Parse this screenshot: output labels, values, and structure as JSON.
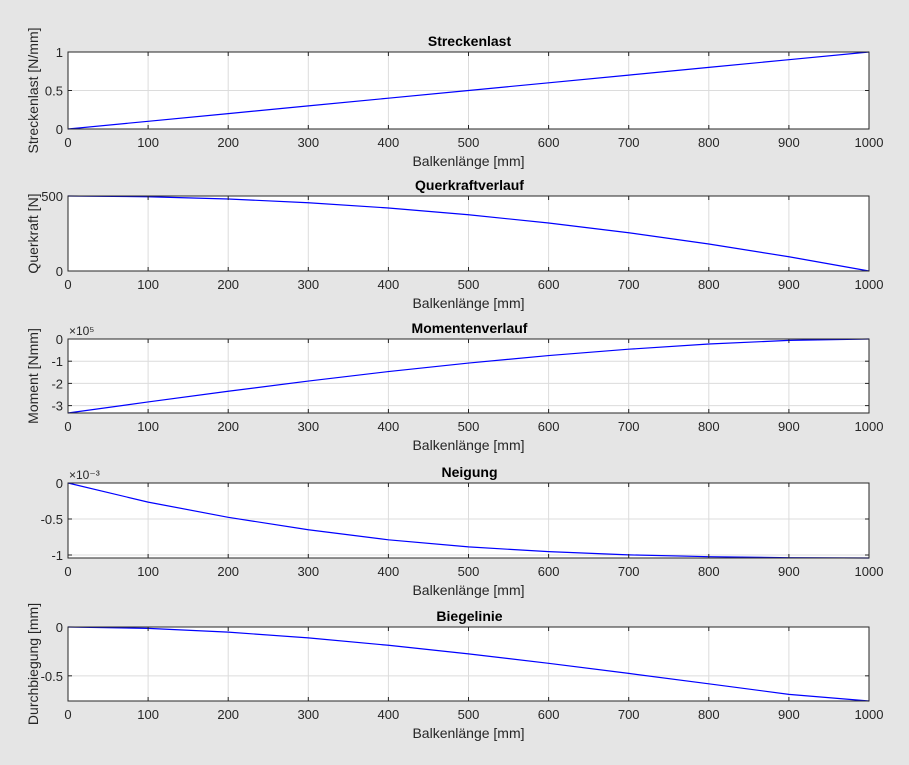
{
  "figure": {
    "background": "#e5e5e5",
    "line_color": "#0000ff"
  },
  "chart_data": [
    {
      "type": "line",
      "title": "Streckenlast",
      "xlabel": "Balkenlänge [mm]",
      "ylabel": "Streckenlast [N/mm]",
      "xlim": [
        0,
        1000
      ],
      "ylim": [
        0,
        1
      ],
      "xticks": [
        0,
        100,
        200,
        300,
        400,
        500,
        600,
        700,
        800,
        900,
        1000
      ],
      "xtick_labels": [
        "0",
        "100",
        "200",
        "300",
        "400",
        "500",
        "600",
        "700",
        "800",
        "900",
        "1000"
      ],
      "yticks": [
        0,
        0.5,
        1
      ],
      "ytick_labels": [
        "0",
        "0.5",
        "1"
      ],
      "exponent_label": "",
      "grid": true,
      "x": [
        0,
        100,
        200,
        300,
        400,
        500,
        600,
        700,
        800,
        900,
        1000
      ],
      "y": [
        0,
        0.1,
        0.2,
        0.3,
        0.4,
        0.5,
        0.6,
        0.7,
        0.8,
        0.9,
        1
      ]
    },
    {
      "type": "line",
      "title": "Querkraftverlauf",
      "xlabel": "Balkenlänge [mm]",
      "ylabel": "Querkraft [N]",
      "xlim": [
        0,
        1000
      ],
      "ylim": [
        0,
        500
      ],
      "xticks": [
        0,
        100,
        200,
        300,
        400,
        500,
        600,
        700,
        800,
        900,
        1000
      ],
      "xtick_labels": [
        "0",
        "100",
        "200",
        "300",
        "400",
        "500",
        "600",
        "700",
        "800",
        "900",
        "1000"
      ],
      "yticks": [
        0,
        500
      ],
      "ytick_labels": [
        "0",
        "500"
      ],
      "exponent_label": "",
      "grid": true,
      "x": [
        0,
        100,
        200,
        300,
        400,
        500,
        600,
        700,
        800,
        900,
        1000
      ],
      "y": [
        500,
        495,
        480,
        455,
        420,
        375,
        320,
        255,
        180,
        95,
        0
      ]
    },
    {
      "type": "line",
      "title": "Momentenverlauf",
      "xlabel": "Balkenlänge [mm]",
      "ylabel": "Moment [Nmm]",
      "xlim": [
        0,
        1000
      ],
      "ylim": [
        -333333,
        0
      ],
      "xticks": [
        0,
        100,
        200,
        300,
        400,
        500,
        600,
        700,
        800,
        900,
        1000
      ],
      "xtick_labels": [
        "0",
        "100",
        "200",
        "300",
        "400",
        "500",
        "600",
        "700",
        "800",
        "900",
        "1000"
      ],
      "yticks": [
        -300000,
        -200000,
        -100000,
        0
      ],
      "ytick_labels": [
        "-3",
        "-2",
        "-1",
        "0"
      ],
      "exponent_label": "×10⁵",
      "grid": true,
      "x": [
        0,
        100,
        200,
        300,
        400,
        500,
        600,
        700,
        800,
        900,
        1000
      ],
      "y": [
        -333333,
        -283500,
        -235333,
        -189500,
        -146667,
        -108333,
        -74667,
        -46000,
        -22667,
        -6167,
        0
      ]
    },
    {
      "type": "line",
      "title": "Neigung",
      "xlabel": "Balkenlänge [mm]",
      "ylabel": "",
      "xlim": [
        0,
        1000
      ],
      "ylim": [
        -1.0417,
        0
      ],
      "xticks": [
        0,
        100,
        200,
        300,
        400,
        500,
        600,
        700,
        800,
        900,
        1000
      ],
      "xtick_labels": [
        "0",
        "100",
        "200",
        "300",
        "400",
        "500",
        "600",
        "700",
        "800",
        "900",
        "1000"
      ],
      "yticks": [
        -1,
        -0.5,
        0
      ],
      "ytick_labels": [
        "-1",
        "-0.5",
        "0"
      ],
      "exponent_label": "×10⁻³",
      "grid": true,
      "x": [
        0,
        100,
        200,
        300,
        400,
        500,
        600,
        700,
        800,
        900,
        1000
      ],
      "y": [
        0,
        -0.2654,
        -0.4763,
        -0.6496,
        -0.7893,
        -0.8875,
        -0.9536,
        -0.9983,
        -1.0234,
        -1.0376,
        -1.0417
      ]
    },
    {
      "type": "line",
      "title": "Biegelinie",
      "xlabel": "Balkenlänge [mm]",
      "ylabel": "Durchbiegung [mm]",
      "xlim": [
        0,
        1000
      ],
      "ylim": [
        -0.7578,
        0
      ],
      "xticks": [
        0,
        100,
        200,
        300,
        400,
        500,
        600,
        700,
        800,
        900,
        1000
      ],
      "xtick_labels": [
        "0",
        "100",
        "200",
        "300",
        "400",
        "500",
        "600",
        "700",
        "800",
        "900",
        "1000"
      ],
      "yticks": [
        -0.5,
        0
      ],
      "ytick_labels": [
        "-0.5",
        "0"
      ],
      "exponent_label": "",
      "grid": true,
      "x": [
        0,
        100,
        200,
        300,
        400,
        500,
        600,
        700,
        800,
        900,
        1000
      ],
      "y": [
        0,
        -0.0138,
        -0.0525,
        -0.1116,
        -0.1871,
        -0.2751,
        -0.3721,
        -0.4752,
        -0.5818,
        -0.6897,
        -0.7578
      ]
    }
  ]
}
